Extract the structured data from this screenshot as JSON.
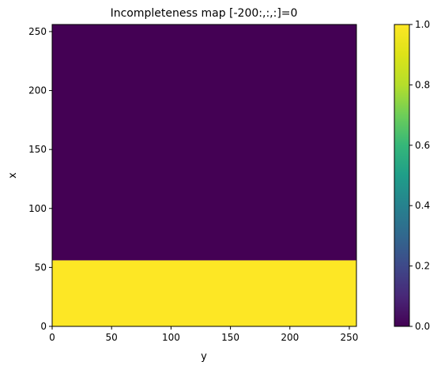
{
  "chart_data": {
    "type": "heatmap",
    "title": "Incompleteness map [-200:,:,:]=0",
    "xlabel": "y",
    "ylabel": "x",
    "xlim": [
      0,
      256
    ],
    "ylim": [
      0,
      256
    ],
    "xticks": [
      0,
      50,
      100,
      150,
      200,
      250
    ],
    "yticks": [
      0,
      50,
      100,
      150,
      200,
      250
    ],
    "regions": [
      {
        "x_range": [
          0,
          256
        ],
        "y_range": [
          0,
          56
        ],
        "value": 1
      },
      {
        "x_range": [
          0,
          256
        ],
        "y_range": [
          56,
          256
        ],
        "value": 0
      }
    ],
    "colormap": "viridis",
    "colorbar": {
      "vmin": 0.0,
      "vmax": 1.0,
      "ticks": [
        "0.0",
        "0.2",
        "0.4",
        "0.6",
        "0.8",
        "1.0"
      ]
    },
    "colors": {
      "low": "#440154",
      "high": "#fde725"
    }
  }
}
